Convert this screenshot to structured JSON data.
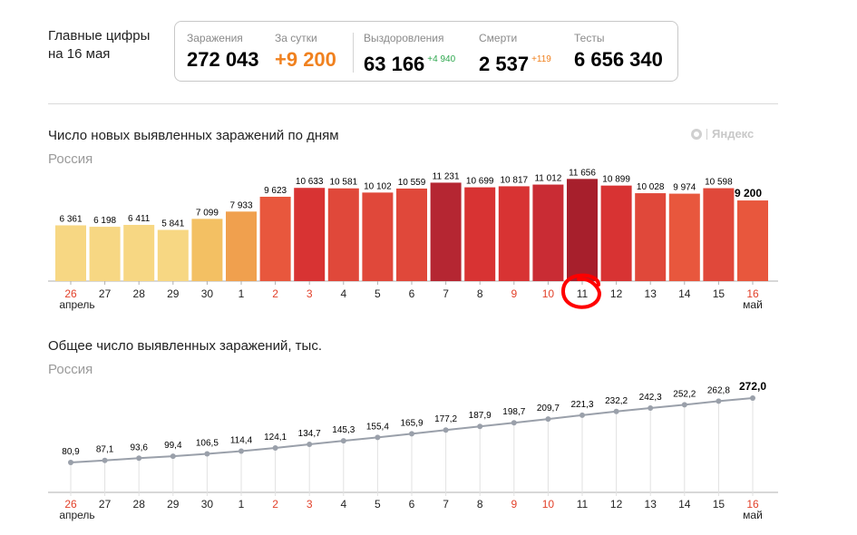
{
  "summary": {
    "headline_line1": "Главные цифры",
    "headline_line2": "на 16 мая",
    "infected_label": "Заражения",
    "infected_value": "272 043",
    "daily_label": "За сутки",
    "daily_value": "+9 200",
    "recovered_label": "Выздоровления",
    "recovered_value": "63 166",
    "recovered_delta": "+4 940",
    "deaths_label": "Смерти",
    "deaths_value": "2 537",
    "deaths_delta": "+119",
    "tests_label": "Тесты",
    "tests_value": "6 656 340"
  },
  "brand": "Яндекс",
  "colors": {
    "accent_orange": "#f0811f",
    "accent_green": "#2fa84f",
    "weekend_red": "#e2412a",
    "line": "#9aa0aa",
    "highlight_circle": "#ff0000"
  },
  "month_labels": {
    "april": "апрель",
    "may": "май"
  },
  "chart_data": [
    {
      "type": "bar",
      "title": "Число новых выявленных заражений по дням",
      "subtitle": "Россия",
      "categories": [
        "26",
        "27",
        "28",
        "29",
        "30",
        "1",
        "2",
        "3",
        "4",
        "5",
        "6",
        "7",
        "8",
        "9",
        "10",
        "11",
        "12",
        "13",
        "14",
        "15",
        "16"
      ],
      "values": [
        6361,
        6198,
        6411,
        5841,
        7099,
        7933,
        9623,
        10633,
        10581,
        10102,
        10559,
        11231,
        10699,
        10817,
        11012,
        11656,
        10899,
        10028,
        9974,
        10598,
        9200
      ],
      "value_labels": [
        "6 361",
        "6 198",
        "6 411",
        "5 841",
        "7 099",
        "7 933",
        "9 623",
        "10 633",
        "10 581",
        "10 102",
        "10 559",
        "11 231",
        "10 699",
        "10 817",
        "11 012",
        "11 656",
        "10 899",
        "10 028",
        "9 974",
        "10 598",
        "9 200"
      ],
      "weekend_days": [
        "26",
        "2",
        "3",
        "9",
        "10",
        "16"
      ],
      "highlighted_category": "11",
      "ylim": [
        0,
        12000
      ],
      "grid": false
    },
    {
      "type": "line",
      "title": "Общее число выявленных заражений, тыс.",
      "subtitle": "Россия",
      "categories": [
        "26",
        "27",
        "28",
        "29",
        "30",
        "1",
        "2",
        "3",
        "4",
        "5",
        "6",
        "7",
        "8",
        "9",
        "10",
        "11",
        "12",
        "13",
        "14",
        "15",
        "16"
      ],
      "values": [
        80.9,
        87.1,
        93.6,
        99.4,
        106.5,
        114.4,
        124.1,
        134.7,
        145.3,
        155.4,
        165.9,
        177.2,
        187.9,
        198.7,
        209.7,
        221.3,
        232.2,
        242.3,
        252.2,
        262.8,
        272.0
      ],
      "value_labels": [
        "80,9",
        "87,1",
        "93,6",
        "99,4",
        "106,5",
        "114,4",
        "124,1",
        "134,7",
        "145,3",
        "155,4",
        "165,9",
        "177,2",
        "187,9",
        "198,7",
        "209,7",
        "221,3",
        "232,2",
        "242,3",
        "252,2",
        "262,8",
        "272,0"
      ],
      "weekend_days": [
        "26",
        "2",
        "3",
        "9",
        "10",
        "16"
      ],
      "grid": false
    }
  ]
}
